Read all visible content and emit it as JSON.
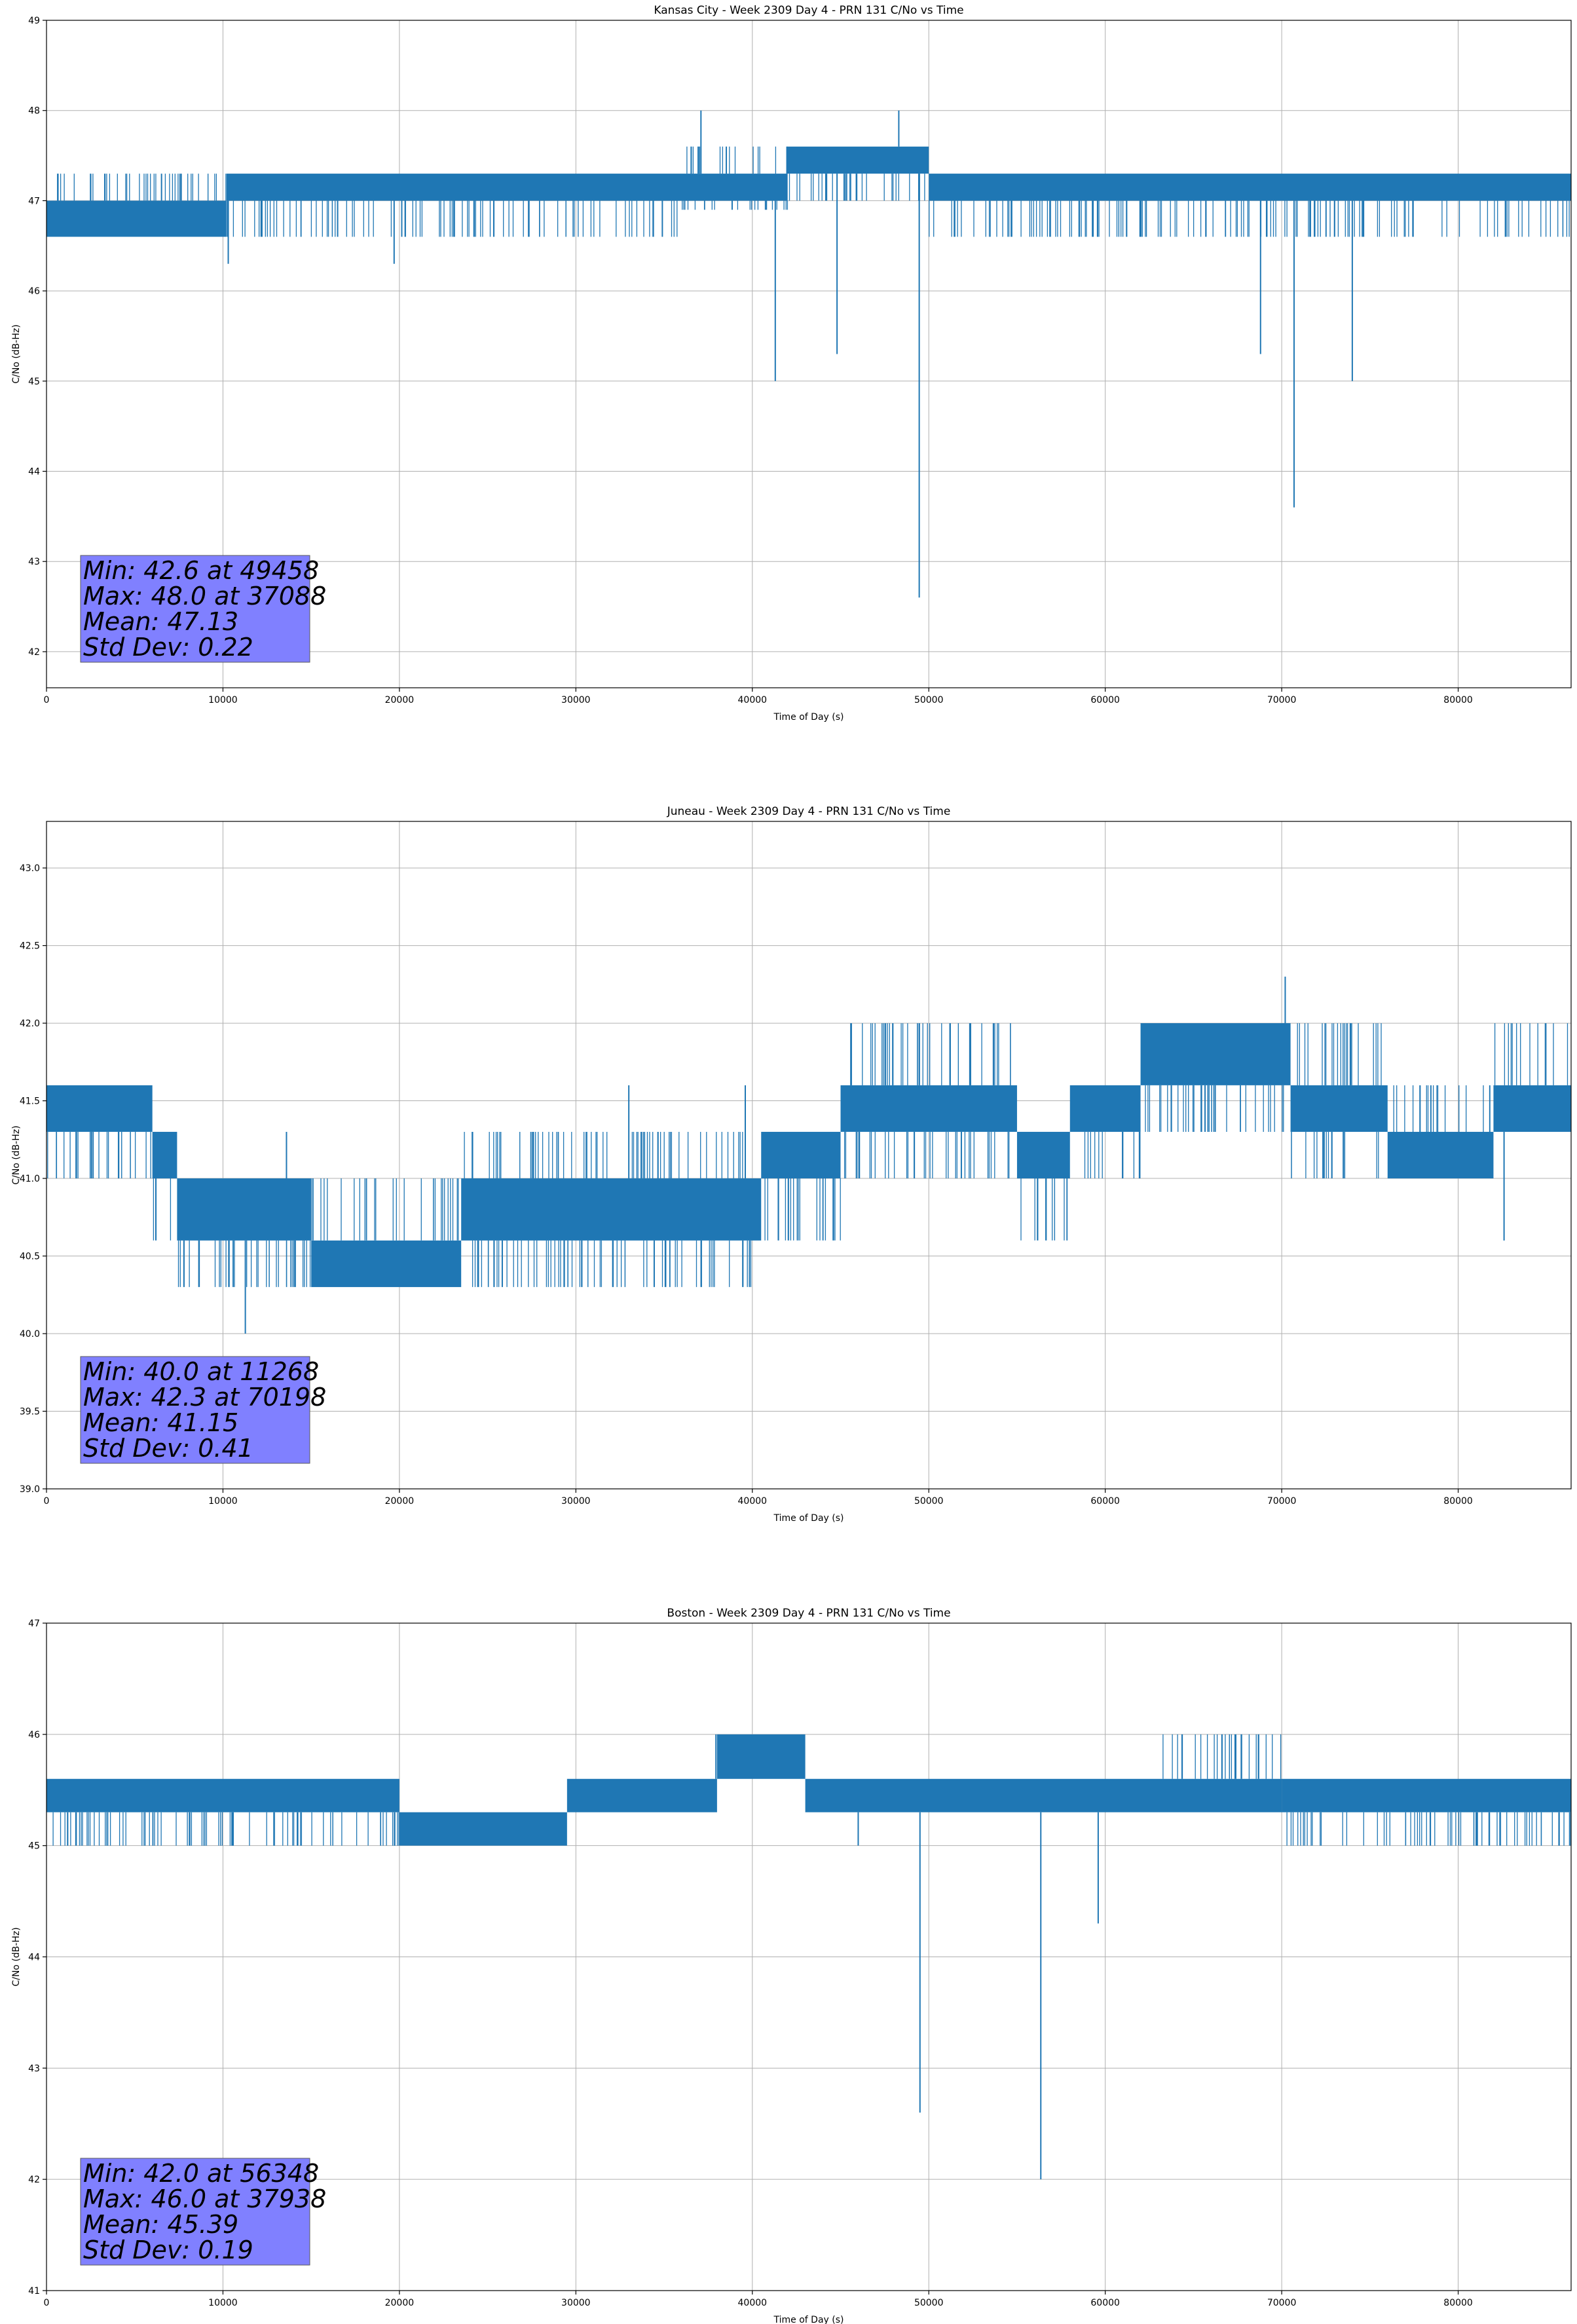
{
  "chart_data": [
    {
      "type": "line",
      "title": "Kansas City - Week 2309 Day 4 - PRN 131 C/No vs Time",
      "xlabel": "Time of Day (s)",
      "ylabel": "C/No (dB-Hz)",
      "xlim": [
        0,
        86400
      ],
      "ylim": [
        41.6,
        49
      ],
      "xticks": [
        0,
        10000,
        20000,
        30000,
        40000,
        50000,
        60000,
        70000,
        80000
      ],
      "yticks": [
        42,
        43,
        44,
        45,
        46,
        47,
        48,
        49
      ],
      "ytick_decimals": 0,
      "grid": true,
      "series_color": "#1f77b4",
      "stats_box_color": "#8080ff",
      "band_segments": [
        {
          "x": [
            0,
            10200
          ],
          "low": 46.6,
          "high": 47.3,
          "core_low": 46.6,
          "core_high": 47.0
        },
        {
          "x": [
            10200,
            36000
          ],
          "low": 46.6,
          "high": 47.3,
          "core_low": 47.0,
          "core_high": 47.3
        },
        {
          "x": [
            36000,
            42000
          ],
          "low": 46.9,
          "high": 47.6,
          "core_low": 47.0,
          "core_high": 47.3
        },
        {
          "x": [
            42000,
            50000
          ],
          "low": 47.0,
          "high": 47.6,
          "core_low": 47.3,
          "core_high": 47.6
        },
        {
          "x": [
            50000,
            86400
          ],
          "low": 46.6,
          "high": 47.3,
          "core_low": 47.0,
          "core_high": 47.3
        }
      ],
      "spikes": [
        {
          "x": 10300,
          "y": 46.3
        },
        {
          "x": 19700,
          "y": 46.3
        },
        {
          "x": 34900,
          "y": 46.6
        },
        {
          "x": 37088,
          "y": 48.0
        },
        {
          "x": 41300,
          "y": 45.0
        },
        {
          "x": 44800,
          "y": 45.3
        },
        {
          "x": 48300,
          "y": 48.0
        },
        {
          "x": 49458,
          "y": 42.6
        },
        {
          "x": 68800,
          "y": 45.3
        },
        {
          "x": 70700,
          "y": 43.6
        },
        {
          "x": 74000,
          "y": 45.0
        }
      ],
      "stats": [
        "Min: 42.6 at 49458",
        "Max: 48.0 at 37088",
        "Mean: 47.13",
        "Std Dev: 0.22"
      ]
    },
    {
      "type": "line",
      "title": "Juneau - Week 2309 Day 4 - PRN 131 C/No vs Time",
      "xlabel": "Time of Day (s)",
      "ylabel": "C/No (dB-Hz)",
      "xlim": [
        0,
        86400
      ],
      "ylim": [
        39.0,
        43.3
      ],
      "xticks": [
        0,
        10000,
        20000,
        30000,
        40000,
        50000,
        60000,
        70000,
        80000
      ],
      "yticks": [
        39.0,
        39.5,
        40.0,
        40.5,
        41.0,
        41.5,
        42.0,
        42.5,
        43.0
      ],
      "ytick_decimals": 1,
      "grid": true,
      "series_color": "#1f77b4",
      "stats_box_color": "#8080ff",
      "band_segments": [
        {
          "x": [
            0,
            6000
          ],
          "low": 41.0,
          "high": 41.6,
          "core_low": 41.3,
          "core_high": 41.6
        },
        {
          "x": [
            6000,
            7400
          ],
          "low": 40.6,
          "high": 41.3,
          "core_low": 41.0,
          "core_high": 41.3
        },
        {
          "x": [
            7400,
            15000
          ],
          "low": 40.3,
          "high": 41.0,
          "core_low": 40.6,
          "core_high": 41.0
        },
        {
          "x": [
            15000,
            23500
          ],
          "low": 40.3,
          "high": 41.0,
          "core_low": 40.3,
          "core_high": 40.6
        },
        {
          "x": [
            23500,
            40500
          ],
          "low": 40.3,
          "high": 41.3,
          "core_low": 40.6,
          "core_high": 41.0
        },
        {
          "x": [
            40500,
            45000
          ],
          "low": 40.6,
          "high": 41.3,
          "core_low": 41.0,
          "core_high": 41.3
        },
        {
          "x": [
            45000,
            55000
          ],
          "low": 41.0,
          "high": 42.0,
          "core_low": 41.3,
          "core_high": 41.6
        },
        {
          "x": [
            55000,
            58000
          ],
          "low": 40.6,
          "high": 41.3,
          "core_low": 41.0,
          "core_high": 41.3
        },
        {
          "x": [
            58000,
            62000
          ],
          "low": 41.0,
          "high": 41.6,
          "core_low": 41.3,
          "core_high": 41.6
        },
        {
          "x": [
            62000,
            70500
          ],
          "low": 41.3,
          "high": 42.0,
          "core_low": 41.6,
          "core_high": 42.0
        },
        {
          "x": [
            70500,
            76000
          ],
          "low": 41.0,
          "high": 42.0,
          "core_low": 41.3,
          "core_high": 41.6
        },
        {
          "x": [
            76000,
            82000
          ],
          "low": 41.0,
          "high": 41.6,
          "core_low": 41.0,
          "core_high": 41.3
        },
        {
          "x": [
            82000,
            86400
          ],
          "low": 41.3,
          "high": 42.0,
          "core_low": 41.3,
          "core_high": 41.6
        }
      ],
      "spikes": [
        {
          "x": 11268,
          "y": 40.0
        },
        {
          "x": 13600,
          "y": 41.3
        },
        {
          "x": 33000,
          "y": 41.6
        },
        {
          "x": 39600,
          "y": 41.6
        },
        {
          "x": 70198,
          "y": 42.3
        },
        {
          "x": 82600,
          "y": 40.6
        }
      ],
      "stats": [
        "Min: 40.0 at 11268",
        "Max: 42.3 at 70198",
        "Mean: 41.15",
        "Std Dev: 0.41"
      ]
    },
    {
      "type": "line",
      "title": "Boston - Week 2309 Day 4 - PRN 131 C/No vs Time",
      "xlabel": "Time of Day (s)",
      "ylabel": "C/No (dB-Hz)",
      "xlim": [
        0,
        86400
      ],
      "ylim": [
        41,
        47
      ],
      "xticks": [
        0,
        10000,
        20000,
        30000,
        40000,
        50000,
        60000,
        70000,
        80000
      ],
      "yticks": [
        41,
        42,
        43,
        44,
        45,
        46,
        47
      ],
      "ytick_decimals": 0,
      "grid": true,
      "series_color": "#1f77b4",
      "stats_box_color": "#8080ff",
      "band_segments": [
        {
          "x": [
            0,
            20000
          ],
          "low": 45.0,
          "high": 45.6,
          "core_low": 45.3,
          "core_high": 45.6
        },
        {
          "x": [
            20000,
            29500
          ],
          "low": 45.0,
          "high": 45.3,
          "core_low": 45.0,
          "core_high": 45.3
        },
        {
          "x": [
            29500,
            38000
          ],
          "low": 45.3,
          "high": 45.6,
          "core_low": 45.3,
          "core_high": 45.6
        },
        {
          "x": [
            38000,
            43000
          ],
          "low": 45.6,
          "high": 46.0,
          "core_low": 45.6,
          "core_high": 46.0
        },
        {
          "x": [
            43000,
            63000
          ],
          "low": 45.3,
          "high": 45.6,
          "core_low": 45.3,
          "core_high": 45.6
        },
        {
          "x": [
            63000,
            70000
          ],
          "low": 45.3,
          "high": 46.0,
          "core_low": 45.3,
          "core_high": 45.6
        },
        {
          "x": [
            70000,
            86400
          ],
          "low": 45.0,
          "high": 45.6,
          "core_low": 45.3,
          "core_high": 45.6
        }
      ],
      "spikes": [
        {
          "x": 37938,
          "y": 46.0
        },
        {
          "x": 46000,
          "y": 45.0
        },
        {
          "x": 49500,
          "y": 42.6
        },
        {
          "x": 56348,
          "y": 42.0
        },
        {
          "x": 59600,
          "y": 44.3
        }
      ],
      "stats": [
        "Min: 42.0 at 56348",
        "Max: 46.0 at 37938",
        "Mean: 45.39",
        "Std Dev: 0.19"
      ]
    }
  ]
}
